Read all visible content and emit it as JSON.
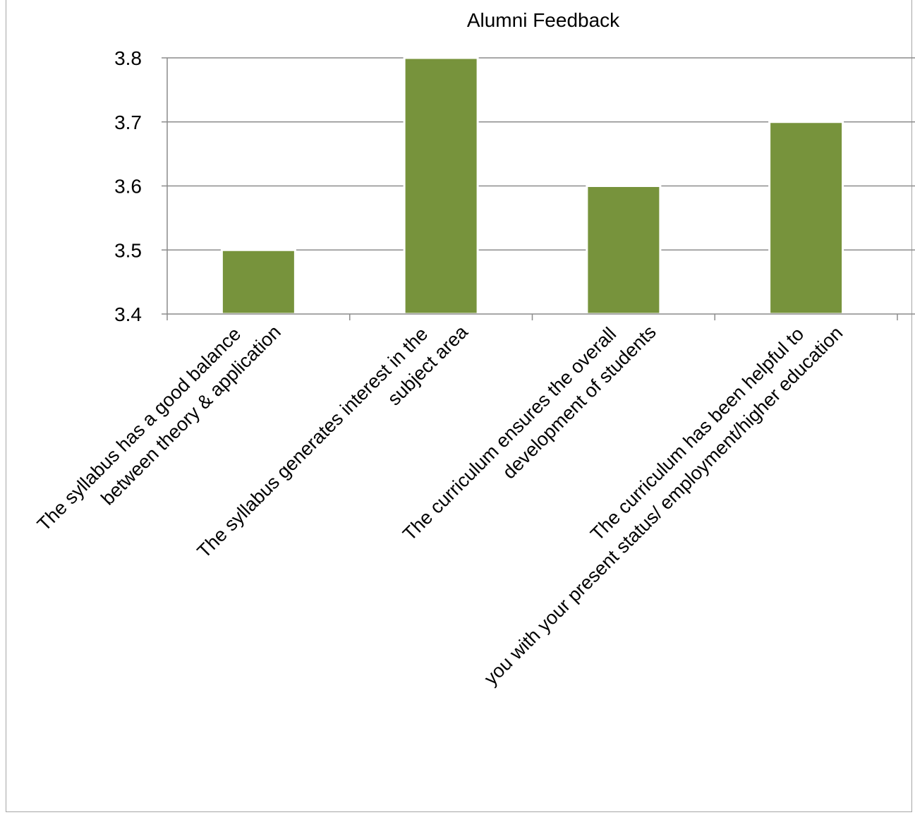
{
  "chart_data": {
    "type": "bar",
    "title": "Alumni Feedback",
    "xlabel": "",
    "ylabel": "",
    "ylim": [
      3.4,
      3.8
    ],
    "yticks": [
      "3.4",
      "3.5",
      "3.6",
      "3.7",
      "3.8"
    ],
    "grid": true,
    "legend": "none",
    "bar_color": "#77933c",
    "categories": [
      [
        "The syllabus has a good balance",
        "between theory & application"
      ],
      [
        "The syllabus generates interest in the",
        "subject area"
      ],
      [
        "The curriculum ensures the overall",
        "development of students"
      ],
      [
        "The curriculum has been helpful to",
        "you with your present status/ employment/higher education"
      ]
    ],
    "values": [
      3.5,
      3.8,
      3.6,
      3.7
    ]
  }
}
